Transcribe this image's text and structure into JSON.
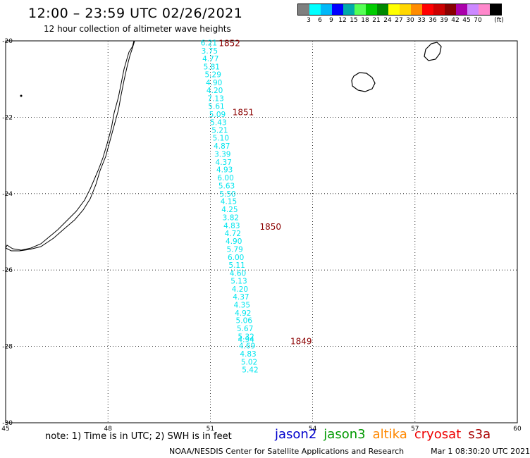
{
  "header": {
    "title": "12:00 – 23:59 UTC 02/26/2021",
    "subtitle": "12 hour collection of altimeter wave heights"
  },
  "legend": {
    "unit": "(ft)",
    "bins": [
      {
        "label": "",
        "color": "#7f7f7f"
      },
      {
        "label": "3",
        "color": "#00ffff"
      },
      {
        "label": "6",
        "color": "#00b8f8"
      },
      {
        "label": "9",
        "color": "#0000ff"
      },
      {
        "label": "12",
        "color": "#00aaaa"
      },
      {
        "label": "15",
        "color": "#55ff55"
      },
      {
        "label": "18",
        "color": "#00cc00"
      },
      {
        "label": "21",
        "color": "#008800"
      },
      {
        "label": "24",
        "color": "#ffff00"
      },
      {
        "label": "27",
        "color": "#ffd700"
      },
      {
        "label": "30",
        "color": "#ff8c00"
      },
      {
        "label": "33",
        "color": "#ff0000"
      },
      {
        "label": "36",
        "color": "#cc0000"
      },
      {
        "label": "39",
        "color": "#880000"
      },
      {
        "label": "42",
        "color": "#aa00aa"
      },
      {
        "label": "45",
        "color": "#cc88ff"
      },
      {
        "label": "70",
        "color": "#ff88cc"
      },
      {
        "label": "",
        "color": "#000000"
      }
    ]
  },
  "map": {
    "lon_range": [
      45,
      60
    ],
    "lat_range": [
      -30,
      -20
    ],
    "lon_ticks": [
      "45",
      "48",
      "51",
      "54",
      "57",
      "60"
    ],
    "lat_ticks": [
      "-20",
      "-22",
      "-24",
      "-26",
      "-28",
      "-30"
    ],
    "grid": "dotted",
    "swh_color": "#00e5ee",
    "pass_color": "#8b0000",
    "swh_readings": [
      {
        "lon": 51.0,
        "lat": -20.05,
        "value": "6.21"
      },
      {
        "lon": 51.02,
        "lat": -20.26,
        "value": "3.75"
      },
      {
        "lon": 51.05,
        "lat": -20.46,
        "value": "4.77"
      },
      {
        "lon": 51.08,
        "lat": -20.67,
        "value": "5.81"
      },
      {
        "lon": 51.12,
        "lat": -20.88,
        "value": "5.29"
      },
      {
        "lon": 51.15,
        "lat": -21.09,
        "value": "4.90"
      },
      {
        "lon": 51.17,
        "lat": -21.29,
        "value": "4.20"
      },
      {
        "lon": 51.2,
        "lat": -21.5,
        "value": "7.13"
      },
      {
        "lon": 51.22,
        "lat": -21.71,
        "value": "5.61"
      },
      {
        "lon": 51.25,
        "lat": -21.92,
        "value": "5.09"
      },
      {
        "lon": 51.28,
        "lat": -22.13,
        "value": "5.43"
      },
      {
        "lon": 51.32,
        "lat": -22.33,
        "value": "5.21"
      },
      {
        "lon": 51.35,
        "lat": -22.54,
        "value": "5.10"
      },
      {
        "lon": 51.38,
        "lat": -22.75,
        "value": "4.87"
      },
      {
        "lon": 51.4,
        "lat": -22.96,
        "value": "3.39"
      },
      {
        "lon": 51.43,
        "lat": -23.17,
        "value": "4.37"
      },
      {
        "lon": 51.46,
        "lat": -23.37,
        "value": "4.93"
      },
      {
        "lon": 51.49,
        "lat": -23.58,
        "value": "6.00"
      },
      {
        "lon": 51.52,
        "lat": -23.79,
        "value": "5.63"
      },
      {
        "lon": 51.55,
        "lat": -24.0,
        "value": "5.50"
      },
      {
        "lon": 51.58,
        "lat": -24.2,
        "value": "4.15"
      },
      {
        "lon": 51.61,
        "lat": -24.41,
        "value": "4.25"
      },
      {
        "lon": 51.64,
        "lat": -24.62,
        "value": "3.82"
      },
      {
        "lon": 51.67,
        "lat": -24.83,
        "value": "4.83"
      },
      {
        "lon": 51.7,
        "lat": -25.04,
        "value": "4.72"
      },
      {
        "lon": 51.73,
        "lat": -25.24,
        "value": "4.90"
      },
      {
        "lon": 51.76,
        "lat": -25.45,
        "value": "5.79"
      },
      {
        "lon": 51.79,
        "lat": -25.66,
        "value": "6.00"
      },
      {
        "lon": 51.82,
        "lat": -25.87,
        "value": "5.11"
      },
      {
        "lon": 51.85,
        "lat": -26.08,
        "value": "4.60"
      },
      {
        "lon": 51.88,
        "lat": -26.28,
        "value": "5.13"
      },
      {
        "lon": 51.91,
        "lat": -26.49,
        "value": "4.20"
      },
      {
        "lon": 51.94,
        "lat": -26.7,
        "value": "4.37"
      },
      {
        "lon": 51.97,
        "lat": -26.91,
        "value": "4.35"
      },
      {
        "lon": 52.0,
        "lat": -27.12,
        "value": "4.92"
      },
      {
        "lon": 52.03,
        "lat": -27.32,
        "value": "5.06"
      },
      {
        "lon": 52.06,
        "lat": -27.53,
        "value": "5.67"
      },
      {
        "lon": 52.09,
        "lat": -27.74,
        "value": "5.32"
      },
      {
        "lon": 52.09,
        "lat": -27.81,
        "value": "4.94"
      },
      {
        "lon": 52.12,
        "lat": -27.98,
        "value": "4.69"
      },
      {
        "lon": 52.15,
        "lat": -28.19,
        "value": "4.83"
      },
      {
        "lon": 52.18,
        "lat": -28.4,
        "value": "5.02"
      },
      {
        "lon": 52.21,
        "lat": -28.61,
        "value": "5.42"
      }
    ],
    "pass_labels": [
      {
        "lon": 51.0,
        "lat": -20.05,
        "text": "1852"
      },
      {
        "lon": 51.4,
        "lat": -21.85,
        "text": "1851"
      },
      {
        "lon": 52.2,
        "lat": -24.85,
        "text": "1850"
      },
      {
        "lon": 53.1,
        "lat": -27.85,
        "text": "1849"
      }
    ]
  },
  "footer": {
    "note": "note: 1) Time is in UTC; 2) SWH is in feet",
    "satellites": [
      {
        "name": "jason2",
        "color": "#0000cc"
      },
      {
        "name": "jason3",
        "color": "#009900"
      },
      {
        "name": "altika",
        "color": "#ff8800"
      },
      {
        "name": "cryosat",
        "color": "#ee0000"
      },
      {
        "name": "s3a",
        "color": "#aa0000"
      }
    ],
    "credit": "NOAA/NESDIS Center for Satellite Applications and Research",
    "timestamp": "Mar  1 08:30:20 UTC 2021"
  }
}
